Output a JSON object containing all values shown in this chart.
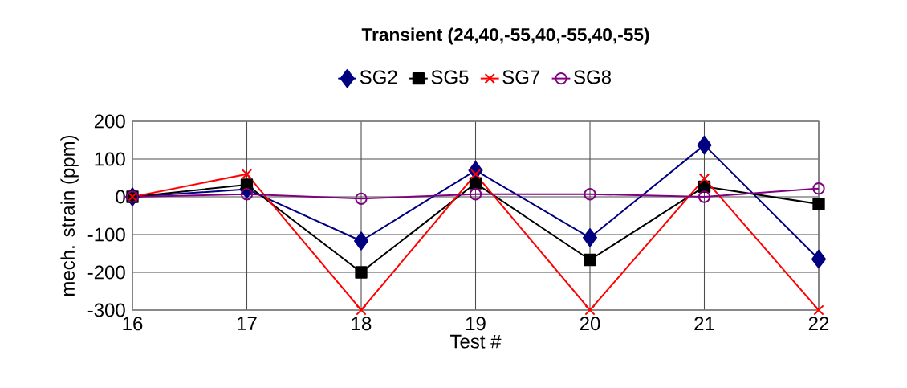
{
  "chart_data": {
    "type": "line",
    "title": "Transient (24,40,-55,40,-55,40,-55)",
    "xlabel": "Test #",
    "ylabel": "mech. strain (ppm)",
    "x": [
      16,
      17,
      18,
      19,
      20,
      21,
      22
    ],
    "series": [
      {
        "name": "SG2",
        "color": "#000080",
        "marker": "diamond",
        "values": [
          0,
          20,
          -117,
          70,
          -108,
          137,
          -165
        ]
      },
      {
        "name": "SG5",
        "color": "#000000",
        "marker": "square",
        "values": [
          0,
          32,
          -200,
          36,
          -167,
          27,
          -19
        ]
      },
      {
        "name": "SG7",
        "color": "#ff0000",
        "marker": "cross",
        "values": [
          0,
          60,
          -300,
          60,
          -300,
          48,
          -300
        ]
      },
      {
        "name": "SG8",
        "color": "#800080",
        "marker": "circle",
        "values": [
          0,
          7,
          -5,
          7,
          7,
          0,
          22
        ]
      }
    ],
    "xlim": [
      16,
      22
    ],
    "xticks": [
      16,
      17,
      18,
      19,
      20,
      21,
      22
    ],
    "ylim": [
      -300,
      200
    ],
    "yticks": [
      -300,
      -200,
      -100,
      0,
      100,
      200
    ],
    "grid": true,
    "legend": "top",
    "line_style": "solid"
  }
}
